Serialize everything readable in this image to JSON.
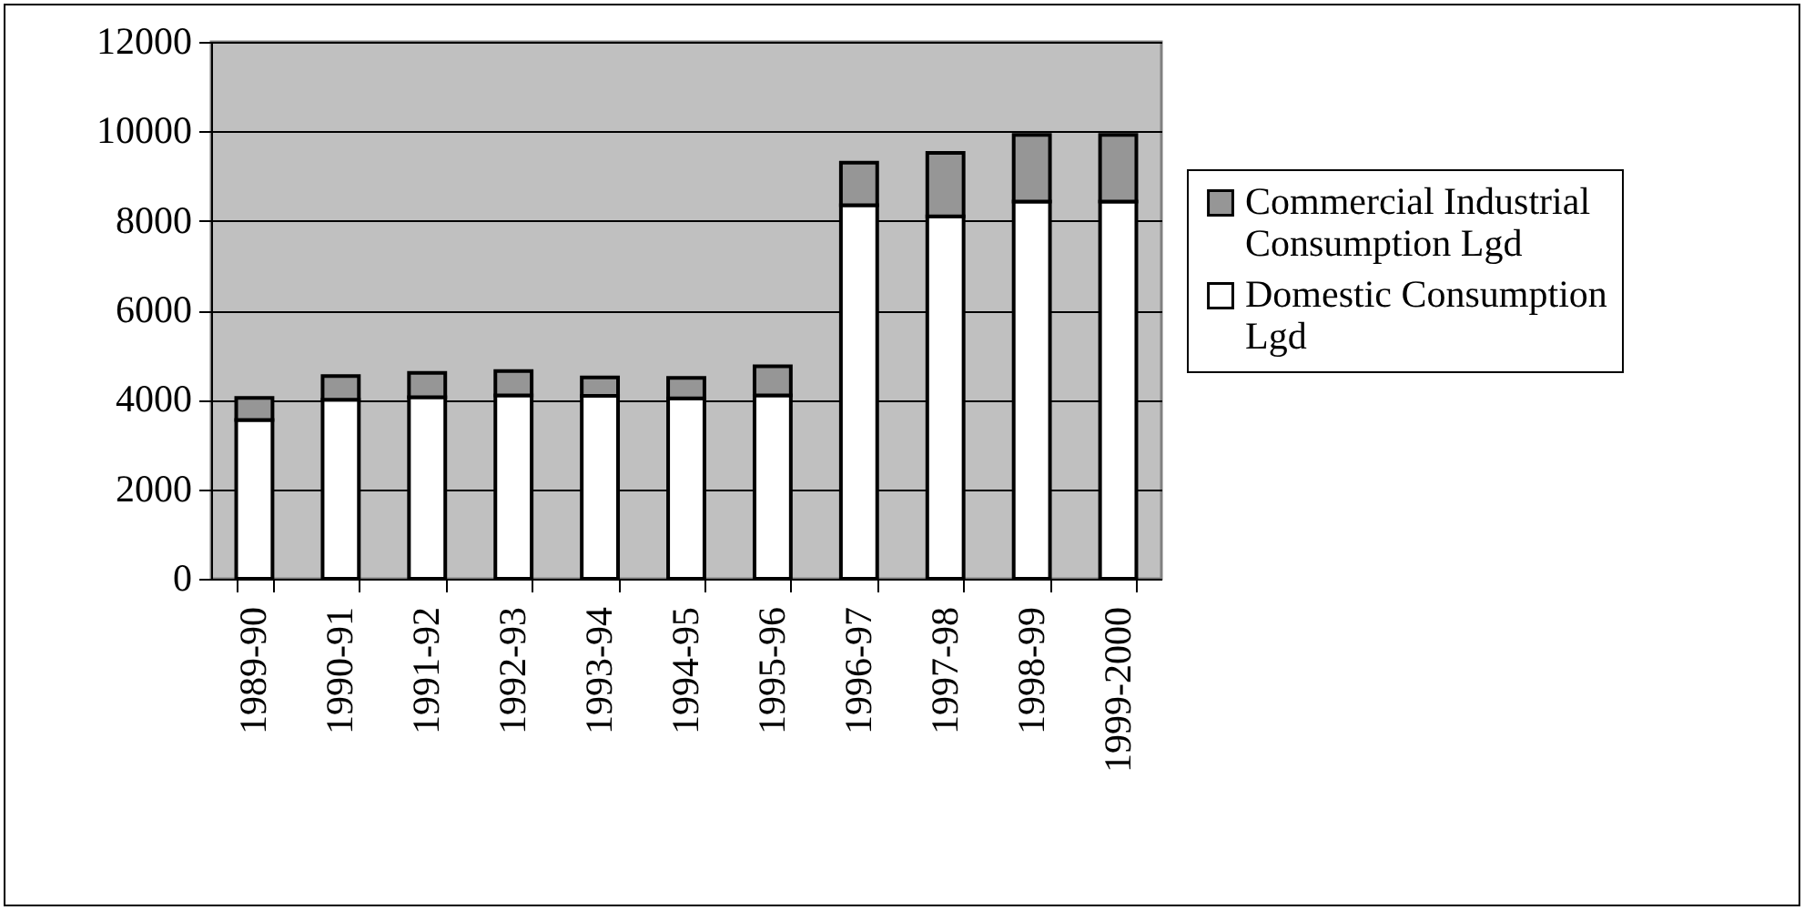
{
  "chart_data": {
    "type": "bar",
    "stacked": true,
    "categories": [
      "1989-90",
      "1990-91",
      "1991-92",
      "1992-93",
      "1993-94",
      "1994-95",
      "1995-96",
      "1996-97",
      "1997-98",
      "1998-99",
      "1999-2000"
    ],
    "series": [
      {
        "name": "Domestic Consumption Lgd",
        "color": "#ffffff",
        "values": [
          3550,
          4000,
          4060,
          4100,
          4090,
          4030,
          4100,
          8350,
          8100,
          8430,
          8430
        ]
      },
      {
        "name": "Commercial Industrial Consumption Lgd",
        "color": "#969696",
        "values": [
          490,
          530,
          540,
          540,
          410,
          460,
          650,
          950,
          1420,
          1490,
          1490
        ]
      }
    ],
    "ylim": [
      0,
      12000
    ],
    "yticks": [
      0,
      2000,
      4000,
      6000,
      8000,
      10000,
      12000
    ],
    "grid": "y",
    "legend": "right"
  }
}
